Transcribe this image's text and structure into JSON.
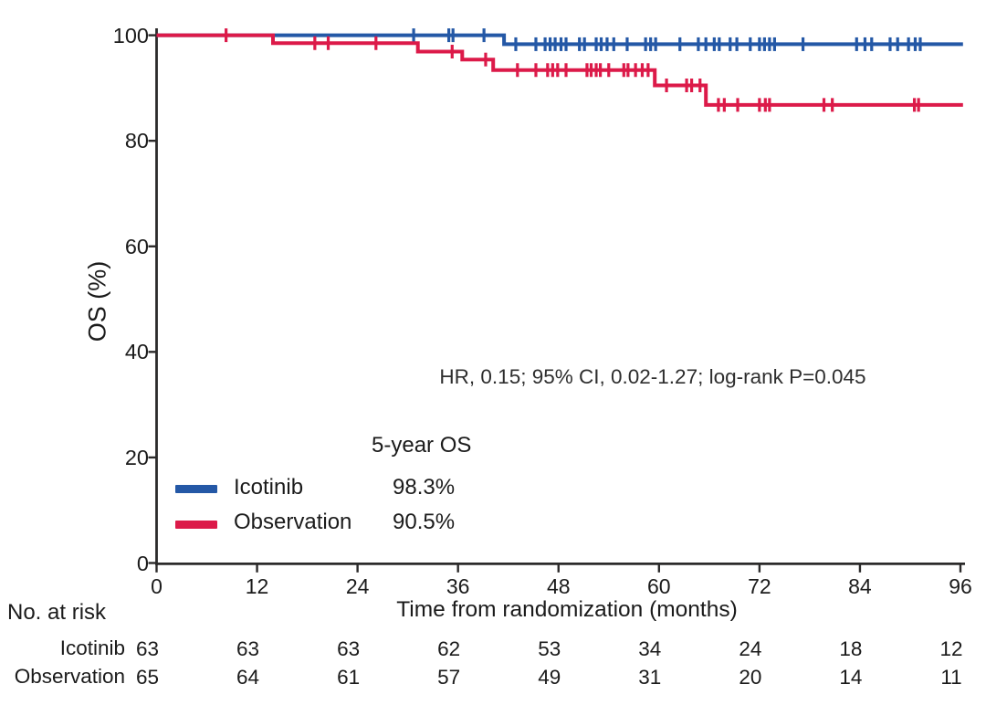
{
  "chart_data": {
    "type": "line",
    "subtype": "kaplan-meier-survival",
    "title": "",
    "xlabel": "Time from randomization (months)",
    "ylabel": "OS (%)",
    "xlim": [
      0,
      96
    ],
    "ylim": [
      0,
      100
    ],
    "x_ticks": [
      0,
      12,
      24,
      36,
      48,
      60,
      72,
      84,
      96
    ],
    "y_ticks": [
      0,
      20,
      40,
      60,
      80,
      100
    ],
    "grid": false,
    "axis_color": "#2b2a2a",
    "annotation": "HR, 0.15; 95% CI, 0.02-1.27; log-rank P=0.045",
    "legend": {
      "header": "5-year OS",
      "position": "lower-left",
      "items": [
        {
          "name": "Icotinib",
          "value": "98.3%",
          "color": "#2458A6"
        },
        {
          "name": "Observation",
          "value": "90.5%",
          "color": "#DC1A49"
        }
      ]
    },
    "series": [
      {
        "name": "Icotinib",
        "color": "#2458A6",
        "five_year_os": "98.3%",
        "steps": [
          [
            0,
            100
          ],
          [
            41.5,
            100
          ],
          [
            41.5,
            98.3
          ],
          [
            96.3,
            98.3
          ]
        ],
        "censors": [
          [
            30.7,
            100
          ],
          [
            34.9,
            100
          ],
          [
            35.4,
            100
          ],
          [
            39.1,
            100
          ],
          [
            42.9,
            98.3
          ],
          [
            45.3,
            98.3
          ],
          [
            46.4,
            98.3
          ],
          [
            47.0,
            98.3
          ],
          [
            47.6,
            98.3
          ],
          [
            48.3,
            98.3
          ],
          [
            48.9,
            98.3
          ],
          [
            50.5,
            98.3
          ],
          [
            51.1,
            98.3
          ],
          [
            52.5,
            98.3
          ],
          [
            53.1,
            98.3
          ],
          [
            53.8,
            98.3
          ],
          [
            54.6,
            98.3
          ],
          [
            56.2,
            98.3
          ],
          [
            58.4,
            98.3
          ],
          [
            59.0,
            98.3
          ],
          [
            59.6,
            98.3
          ],
          [
            62.5,
            98.3
          ],
          [
            64.7,
            98.3
          ],
          [
            65.6,
            98.3
          ],
          [
            66.6,
            98.3
          ],
          [
            67.2,
            98.3
          ],
          [
            68.5,
            98.3
          ],
          [
            69.3,
            98.3
          ],
          [
            70.9,
            98.3
          ],
          [
            72.0,
            98.3
          ],
          [
            72.6,
            98.3
          ],
          [
            73.2,
            98.3
          ],
          [
            73.8,
            98.3
          ],
          [
            77.2,
            98.3
          ],
          [
            83.6,
            98.3
          ],
          [
            84.6,
            98.3
          ],
          [
            85.4,
            98.3
          ],
          [
            87.6,
            98.3
          ],
          [
            88.5,
            98.3
          ],
          [
            89.8,
            98.3
          ],
          [
            90.6,
            98.3
          ],
          [
            91.2,
            98.3
          ]
        ]
      },
      {
        "name": "Observation",
        "color": "#DC1A49",
        "five_year_os": "90.5%",
        "steps": [
          [
            0,
            100
          ],
          [
            13.9,
            100
          ],
          [
            13.9,
            98.5
          ],
          [
            31.2,
            98.5
          ],
          [
            31.2,
            96.9
          ],
          [
            36.5,
            96.9
          ],
          [
            36.5,
            95.4
          ],
          [
            40.2,
            95.4
          ],
          [
            40.2,
            93.4
          ],
          [
            59.5,
            93.4
          ],
          [
            59.5,
            90.5
          ],
          [
            65.6,
            90.5
          ],
          [
            65.6,
            86.8
          ],
          [
            96.3,
            86.8
          ]
        ],
        "censors": [
          [
            8.3,
            100
          ],
          [
            18.9,
            98.5
          ],
          [
            20.5,
            98.5
          ],
          [
            26.2,
            98.5
          ],
          [
            35.3,
            96.9
          ],
          [
            39.3,
            95.4
          ],
          [
            43.1,
            93.4
          ],
          [
            45.3,
            93.4
          ],
          [
            46.7,
            93.4
          ],
          [
            47.3,
            93.4
          ],
          [
            47.9,
            93.4
          ],
          [
            48.9,
            93.4
          ],
          [
            51.4,
            93.4
          ],
          [
            51.9,
            93.4
          ],
          [
            52.5,
            93.4
          ],
          [
            53.0,
            93.4
          ],
          [
            54.0,
            93.4
          ],
          [
            55.8,
            93.4
          ],
          [
            56.3,
            93.4
          ],
          [
            57.2,
            93.4
          ],
          [
            58.0,
            93.4
          ],
          [
            58.7,
            93.4
          ],
          [
            60.9,
            90.5
          ],
          [
            63.3,
            90.5
          ],
          [
            63.9,
            90.5
          ],
          [
            64.9,
            90.5
          ],
          [
            67.1,
            86.8
          ],
          [
            67.8,
            86.8
          ],
          [
            69.4,
            86.8
          ],
          [
            72.0,
            86.8
          ],
          [
            72.7,
            86.8
          ],
          [
            73.2,
            86.8
          ],
          [
            79.7,
            86.8
          ],
          [
            80.7,
            86.8
          ],
          [
            90.5,
            86.8
          ],
          [
            91.0,
            86.8
          ]
        ]
      }
    ],
    "at_risk": {
      "label": "No. at risk",
      "time_points": [
        0,
        12,
        24,
        36,
        48,
        60,
        72,
        84,
        96
      ],
      "rows": [
        {
          "name": "Icotinib",
          "values": [
            63,
            63,
            63,
            62,
            53,
            34,
            24,
            18,
            12
          ]
        },
        {
          "name": "Observation",
          "values": [
            65,
            64,
            61,
            57,
            49,
            31,
            20,
            14,
            11
          ]
        }
      ]
    }
  }
}
